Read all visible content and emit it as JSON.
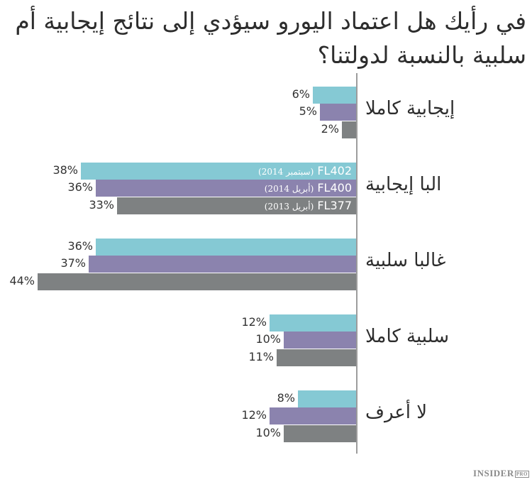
{
  "title": "في رأيك هل اعتماد اليورو سيؤدي إلى نتائج إيجابية أم سلبية بالنسبة لدولتنا؟",
  "brand": {
    "name": "INSIDER",
    "suffix": "PRO"
  },
  "colors": {
    "FL402": "#85c9d4",
    "FL400": "#8b83ae",
    "FL377": "#7e8182",
    "axis": "#9c9c9c"
  },
  "legend": [
    {
      "code": "FL402",
      "period": "(سبتمبر 2014)"
    },
    {
      "code": "FL400",
      "period": "(أبريل 2014)"
    },
    {
      "code": "FL377",
      "period": "(أبريل 2013)"
    }
  ],
  "chart_data": {
    "type": "bar",
    "orientation": "horizontal",
    "title": "في رأيك هل اعتماد اليورو سيؤدي إلى نتائج إيجابية أم سلبية بالنسبة لدولتنا؟",
    "xlabel": "",
    "ylabel": "",
    "categories": [
      "إيجابية كاملا",
      "البا إيجابية",
      "غالبا سلبية",
      "سلبية كاملا",
      "لا أعرف"
    ],
    "series": [
      {
        "name": "FL402 (سبتمبر 2014)",
        "values": [
          6,
          38,
          36,
          12,
          8
        ]
      },
      {
        "name": "FL400 (أبريل 2014)",
        "values": [
          5,
          36,
          37,
          10,
          12
        ]
      },
      {
        "name": "FL377 (أبريل 2013)",
        "values": [
          2,
          33,
          44,
          11,
          10
        ]
      }
    ],
    "value_suffix": "%",
    "grid": false,
    "legend_position": "inside bars of second category"
  },
  "groups": [
    {
      "label": "إيجابية كاملا",
      "bars": [
        {
          "v": 6,
          "t": "6%"
        },
        {
          "v": 5,
          "t": "5%"
        },
        {
          "v": 2,
          "t": "2%"
        }
      ]
    },
    {
      "label": "البا إيجابية",
      "bars": [
        {
          "v": 38,
          "t": "38%"
        },
        {
          "v": 36,
          "t": "36%"
        },
        {
          "v": 33,
          "t": "33%"
        }
      ]
    },
    {
      "label": "غالبا سلبية",
      "bars": [
        {
          "v": 36,
          "t": "36%"
        },
        {
          "v": 37,
          "t": "37%"
        },
        {
          "v": 44,
          "t": "44%"
        }
      ]
    },
    {
      "label": "سلبية كاملا",
      "bars": [
        {
          "v": 12,
          "t": "12%"
        },
        {
          "v": 10,
          "t": "10%"
        },
        {
          "v": 11,
          "t": "11%"
        }
      ]
    },
    {
      "label": "لا أعرف",
      "bars": [
        {
          "v": 8,
          "t": "8%"
        },
        {
          "v": 12,
          "t": "12%"
        },
        {
          "v": 10,
          "t": "10%"
        }
      ]
    }
  ]
}
